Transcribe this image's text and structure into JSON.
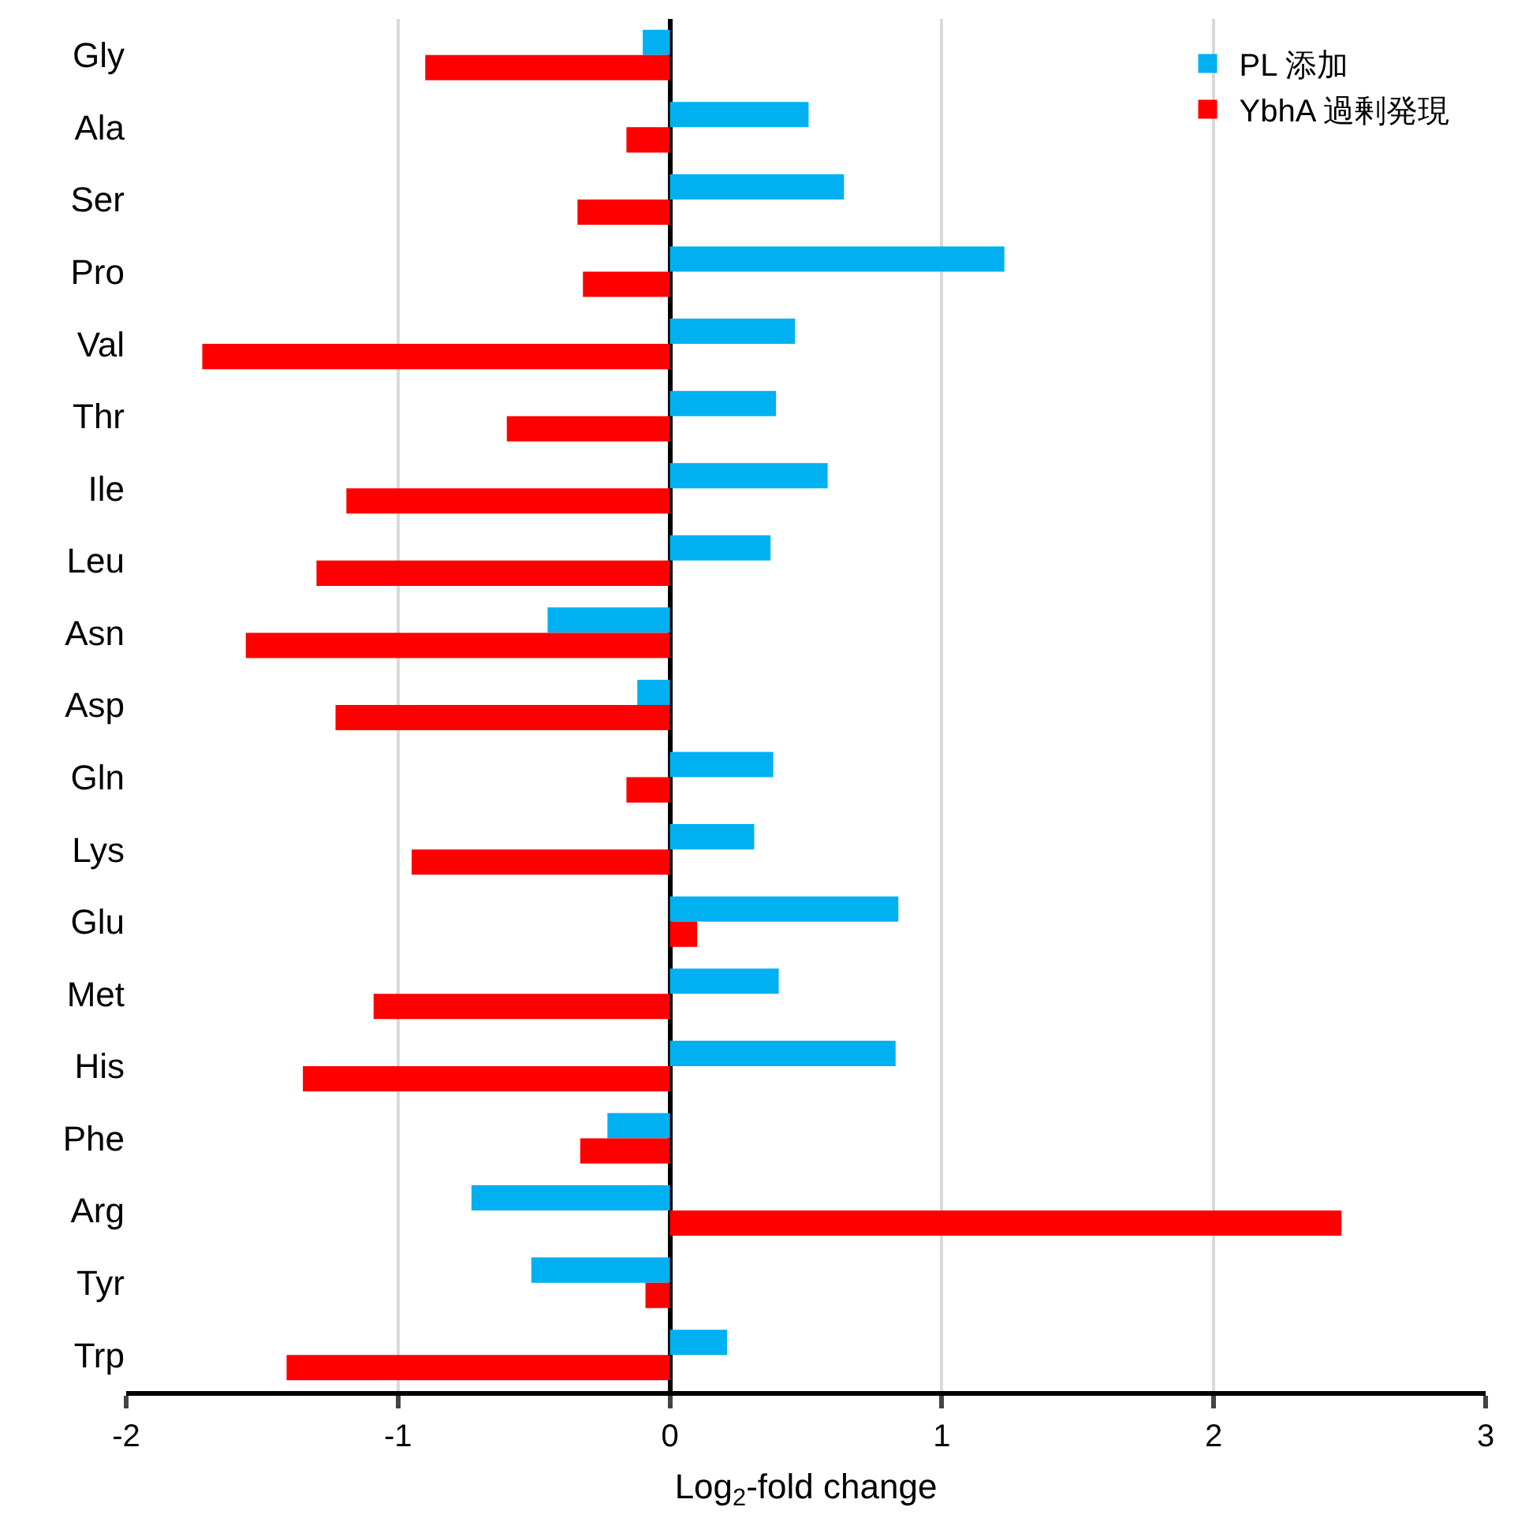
{
  "chart_data": {
    "type": "bar",
    "orientation": "horizontal",
    "xlabel": "Log$_{2}$-fold change",
    "categories": [
      "Gly",
      "Ala",
      "Ser",
      "Pro",
      "Val",
      "Thr",
      "Ile",
      "Leu",
      "Asn",
      "Asp",
      "Gln",
      "Lys",
      "Glu",
      "Met",
      "His",
      "Phe",
      "Arg",
      "Tyr",
      "Trp"
    ],
    "series": [
      {
        "name": "PL 添加",
        "color": "#00b0f0",
        "values": [
          -0.1,
          0.51,
          0.64,
          1.23,
          0.46,
          0.39,
          0.58,
          0.37,
          -0.45,
          -0.12,
          0.38,
          0.31,
          0.84,
          0.4,
          0.83,
          -0.23,
          -0.73,
          -0.51,
          0.21
        ]
      },
      {
        "name": "YbhA 過剰発現",
        "color": "#ff0000",
        "values": [
          -0.9,
          -0.16,
          -0.34,
          -0.32,
          -1.72,
          -0.6,
          -1.19,
          -1.3,
          -1.56,
          -1.23,
          -0.16,
          -0.95,
          0.1,
          -1.09,
          -1.35,
          -0.33,
          2.47,
          -0.09,
          -1.41
        ]
      }
    ],
    "xlim": [
      -2,
      3
    ],
    "xticks": [
      -2,
      -1,
      0,
      1,
      2,
      3
    ],
    "grid": "x",
    "legend": "top right"
  }
}
